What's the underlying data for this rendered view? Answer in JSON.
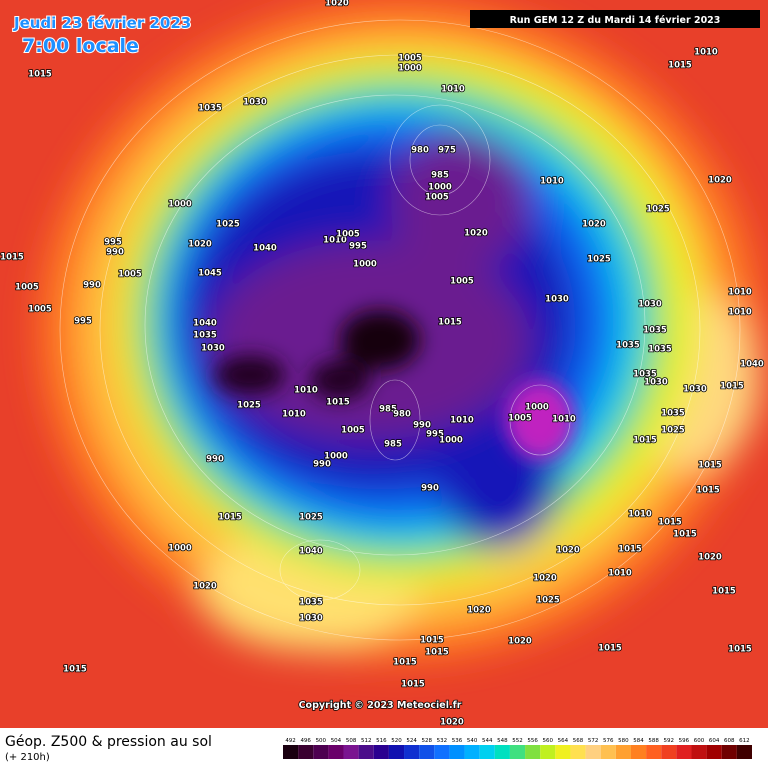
{
  "header": {
    "date": "Jeudi 23 février 2023",
    "time": "7:00 locale",
    "run": "Run GEM 12 Z du Mardi 14 février 2023"
  },
  "footer": {
    "title": "Géop. Z500 & pression au sol",
    "lead": "(+ 210h)",
    "copyright": "Copyright © 2023 Meteociel.fr"
  },
  "legend": {
    "values": [
      492,
      496,
      500,
      504,
      508,
      512,
      516,
      520,
      524,
      528,
      532,
      536,
      540,
      544,
      548,
      552,
      556,
      560,
      564,
      568,
      572,
      576,
      580,
      584,
      588,
      592,
      596,
      600,
      604,
      608,
      612
    ],
    "colors": [
      "#1a0010",
      "#3a0030",
      "#4d0050",
      "#6a006a",
      "#7a1490",
      "#4b0d8a",
      "#2a0090",
      "#1010b0",
      "#1030d0",
      "#1050e8",
      "#1070ff",
      "#0090ff",
      "#00b0ff",
      "#00d0f0",
      "#00e0c0",
      "#40e080",
      "#80e040",
      "#c0f020",
      "#f0f020",
      "#ffe050",
      "#ffd080",
      "#ffc050",
      "#ffa030",
      "#ff8020",
      "#ff6020",
      "#f04020",
      "#e02020",
      "#c01010",
      "#a00000",
      "#700000",
      "#400000"
    ]
  },
  "pressure_labels": [
    1020,
    1015,
    1035,
    1030,
    1005,
    1000,
    1010,
    1010,
    1015,
    980,
    975,
    985,
    1000,
    1005,
    1010,
    1020,
    1025,
    1000,
    1025,
    1020,
    1040,
    1010,
    1005,
    995,
    1000,
    1020,
    1020,
    1025,
    995,
    990,
    1015,
    1005,
    1045,
    1005,
    1010,
    1005,
    990,
    1030,
    1030,
    1010,
    995,
    1005,
    1040,
    1015,
    1035,
    1035,
    1035,
    1035,
    1030,
    1040,
    1035,
    1030,
    1030,
    1015,
    1010,
    1025,
    1010,
    1015,
    985,
    980,
    1000,
    1005,
    1010,
    1010,
    990,
    995,
    1000,
    1035,
    985,
    1005,
    1025,
    1015,
    990,
    1000,
    990,
    990,
    1015,
    1015,
    1015,
    1025,
    1010,
    1015,
    1015,
    1000,
    1040,
    1015,
    1020,
    1020,
    1010,
    1020,
    1020,
    1025,
    1035,
    1030,
    1020,
    1015,
    1020,
    1015,
    1015,
    1015,
    1015,
    1015,
    1015,
    1015,
    1020
  ]
}
